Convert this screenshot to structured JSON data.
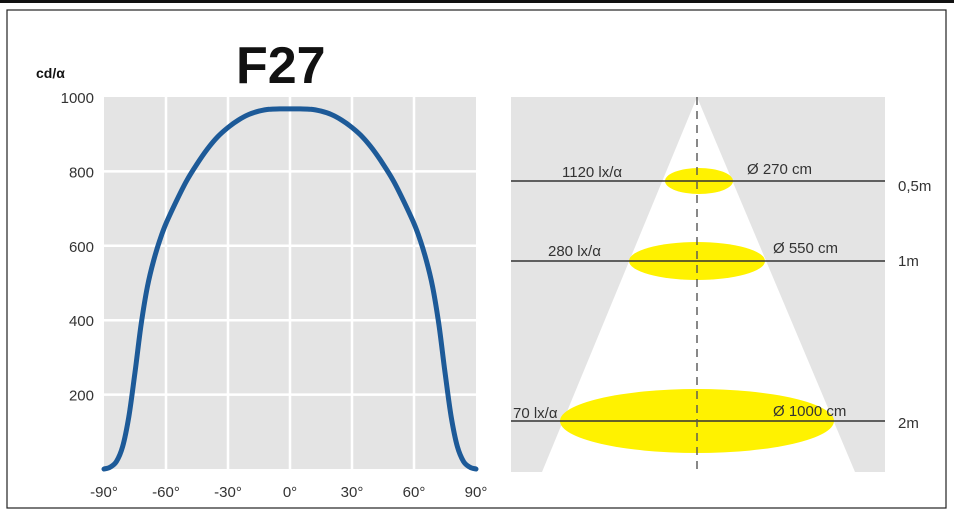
{
  "chart_data": [
    {
      "type": "line",
      "title": "F27",
      "ylabel": "cd/α",
      "xlabel": "",
      "x_tick_labels": [
        "-90°",
        "-60°",
        "-30°",
        "0°",
        "30°",
        "60°",
        "90°"
      ],
      "y_tick_labels": [
        "1000",
        "800",
        "600",
        "400",
        "200"
      ],
      "xlim": [
        -90,
        90
      ],
      "ylim": [
        0,
        1000
      ],
      "grid": true,
      "colors": {
        "line": "#1d5a98",
        "plot_bg": "#e4e4e4",
        "grid": "#ffffff"
      },
      "series": [
        {
          "x": [
            -90,
            -87,
            -84,
            -81,
            -78,
            -75,
            -72,
            -69,
            -66,
            -63,
            -60,
            -55,
            -50,
            -45,
            -40,
            -35,
            -30,
            -25,
            -20,
            -15,
            -10,
            -5,
            0,
            5,
            10,
            15,
            20,
            25,
            30,
            35,
            40,
            45,
            50,
            55,
            60,
            63,
            66,
            69,
            72,
            75,
            78,
            81,
            84,
            87,
            90
          ],
          "y": [
            0,
            5,
            20,
            60,
            140,
            260,
            390,
            490,
            560,
            615,
            660,
            720,
            775,
            820,
            860,
            893,
            918,
            938,
            953,
            962,
            967,
            968,
            968,
            968,
            967,
            962,
            953,
            938,
            918,
            893,
            860,
            820,
            775,
            720,
            660,
            615,
            560,
            490,
            390,
            260,
            140,
            60,
            20,
            5,
            0
          ]
        }
      ]
    },
    {
      "type": "diagram",
      "levels": [
        {
          "illuminance": "1120 lx/α",
          "diameter": "Ø 270 cm",
          "distance": "0,5m"
        },
        {
          "illuminance": "280 lx/α",
          "diameter": "Ø 550 cm",
          "distance": "1m"
        },
        {
          "illuminance": "70 lx/α",
          "diameter": "Ø 1000 cm",
          "distance": "2m"
        }
      ],
      "colors": {
        "background": "#e4e4e4",
        "cone": "#ffffff",
        "spot": "#fff200"
      }
    }
  ]
}
